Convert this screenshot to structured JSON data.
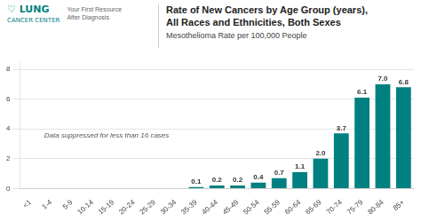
{
  "chart_data": {
    "type": "bar",
    "title": [
      "Rate of New Cancers by Age Group (years),",
      "All Races and Ethnicities, Both Sexes"
    ],
    "subtitle": "Mesothelioma Rate per 100,000 People",
    "categories": [
      "<1",
      "1-4",
      "5-9",
      "10-14",
      "15-19",
      "20-24",
      "25-29",
      "30-34",
      "35-39",
      "40-44",
      "45-49",
      "50-54",
      "55-59",
      "60-64",
      "65-69",
      "70-74",
      "75-79",
      "80-84",
      "85+"
    ],
    "values": [
      0,
      0,
      0,
      0,
      0,
      0,
      0,
      0,
      0.1,
      0.2,
      0.2,
      0.4,
      0.7,
      1.1,
      2.0,
      3.7,
      6.1,
      7.0,
      6.8
    ],
    "value_labels": [
      null,
      null,
      null,
      null,
      null,
      null,
      null,
      null,
      "0.1",
      "0.2",
      "0.2",
      "0.4",
      "0.7",
      "1.1",
      "2.0",
      "3.7",
      "6.1",
      "7.0",
      "6.8"
    ],
    "data_labels": true,
    "color": "#008080",
    "ylim": [
      0,
      8.5
    ],
    "yticks": [
      0,
      2,
      4,
      6,
      8
    ],
    "grid": true,
    "annotations": [
      "Data suppressed for less than 16 cases"
    ],
    "logo": {
      "name": [
        "♡ LUNG",
        "CANCER CENTER"
      ],
      "tagline": [
        "Your First Resource",
        "After Diagnosis"
      ],
      "color": "#008080"
    }
  }
}
